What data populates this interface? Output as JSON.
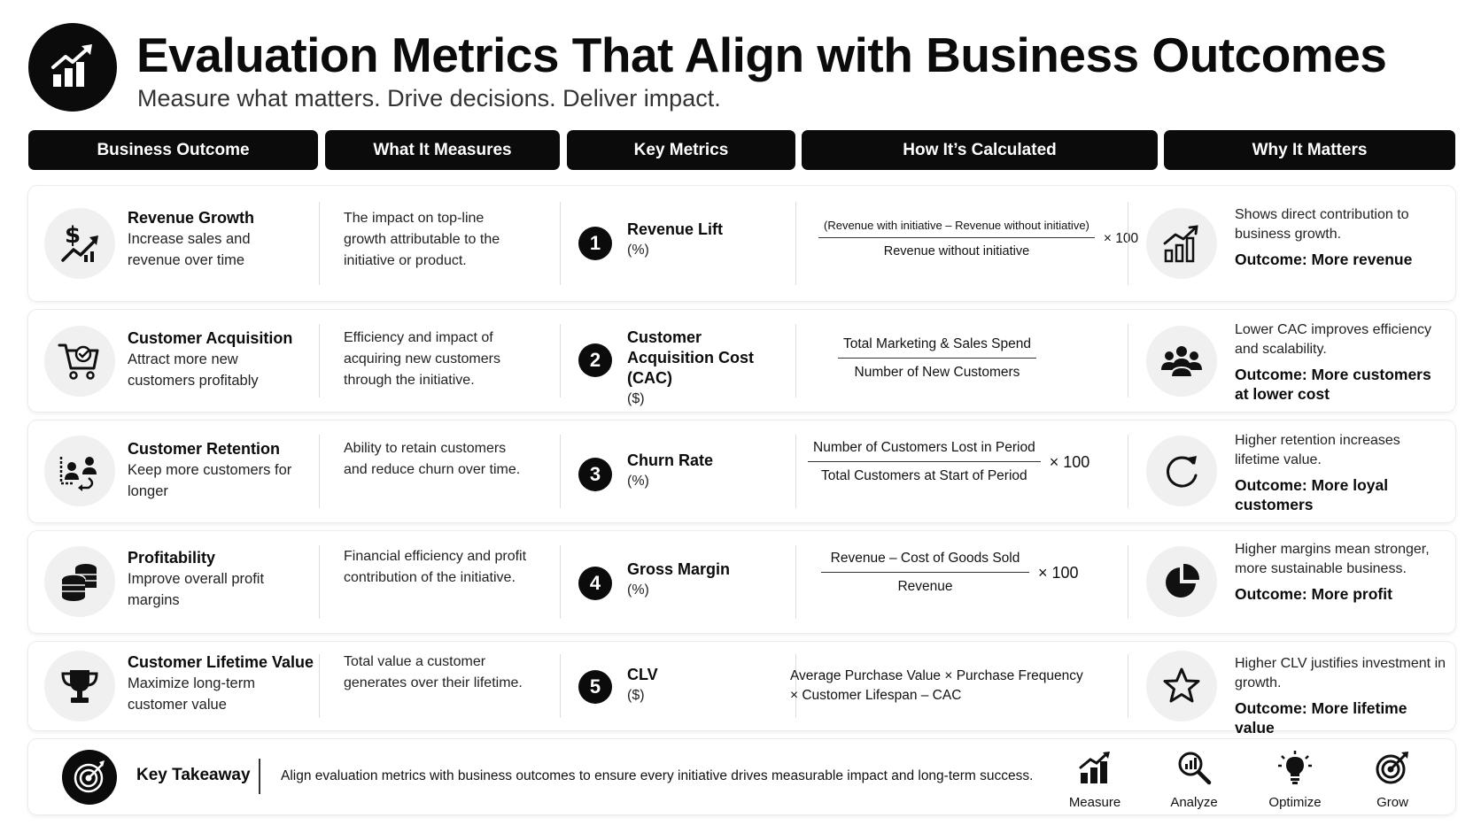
{
  "header": {
    "title": "Evaluation Metrics That Align with Business Outcomes",
    "subtitle": "Measure what matters. Drive decisions. Deliver impact.",
    "logo_icon": "growth-chart-icon"
  },
  "columns": [
    "Business Outcome",
    "What It Measures",
    "Key Metrics",
    "How It’s Calculated",
    "Why It Matters"
  ],
  "rows": [
    {
      "outcome_icon": "revenue-growth-icon",
      "outcome_title": "Revenue Growth",
      "outcome_desc": "Increase sales and revenue over time",
      "measures": "The impact on top-line growth attributable to the initiative or product.",
      "number": "1",
      "metric_name": "Revenue Lift",
      "metric_unit": "(%)",
      "formula_num": "(Revenue with initiative – Revenue without initiative)",
      "formula_den": "Revenue without initiative",
      "formula_mult": "× 100",
      "why_icon": "bar-chart-icon",
      "why_desc": "Shows direct contribution to business growth.",
      "why_outcome": "Outcome: More revenue"
    },
    {
      "outcome_icon": "shopping-cart-check-icon",
      "outcome_title": "Customer Acquisition",
      "outcome_desc": "Attract more new customers profitably",
      "measures": "Efficiency and impact of acquiring new customers through the initiative.",
      "number": "2",
      "metric_name": "Customer Acquisition Cost (CAC)",
      "metric_unit": "($)",
      "formula_num": "Total Marketing & Sales Spend",
      "formula_den": "Number of New Customers",
      "formula_mult": "",
      "why_icon": "users-group-icon",
      "why_desc": "Lower CAC improves efficiency and scalability.",
      "why_outcome": "Outcome: More customers at lower cost"
    },
    {
      "outcome_icon": "customer-retention-icon",
      "outcome_title": "Customer Retention",
      "outcome_desc": "Keep more customers for longer",
      "measures": "Ability to retain customers and reduce churn over time.",
      "number": "3",
      "metric_name": "Churn Rate",
      "metric_unit": "(%)",
      "formula_num": "Number of Customers Lost in Period",
      "formula_den": "Total Customers at Start of Period",
      "formula_mult": "× 100",
      "why_icon": "refresh-icon",
      "why_desc": "Higher retention increases lifetime value.",
      "why_outcome": "Outcome: More loyal customers"
    },
    {
      "outcome_icon": "coin-stack-icon",
      "outcome_title": "Profitability",
      "outcome_desc": "Improve overall profit margins",
      "measures": "Financial efficiency and profit contribution of the initiative.",
      "number": "4",
      "metric_name": "Gross Margin",
      "metric_unit": "(%)",
      "formula_num": "Revenue – Cost of Goods Sold",
      "formula_den": "Revenue",
      "formula_mult": "× 100",
      "why_icon": "pie-chart-icon",
      "why_desc": "Higher margins mean stronger, more sustainable business.",
      "why_outcome": "Outcome: More profit"
    },
    {
      "outcome_icon": "trophy-icon",
      "outcome_title": "Customer Lifetime Value",
      "outcome_desc": "Maximize long-term customer value",
      "measures": "Total value a customer generates over their lifetime.",
      "number": "5",
      "metric_name": "CLV",
      "metric_unit": "($)",
      "formula_inline": "Average Purchase Value × Purchase Frequency × Customer Lifespan – CAC",
      "why_icon": "star-icon",
      "why_desc": "Higher CLV justifies investment in growth.",
      "why_outcome": "Outcome: More lifetime value"
    }
  ],
  "takeaway": {
    "icon": "target-icon",
    "title": "Key Takeaway",
    "text": "Align evaluation metrics with business outcomes to ensure every initiative drives measurable impact and long-term success.",
    "steps": [
      {
        "icon": "measure-icon",
        "label": "Measure"
      },
      {
        "icon": "analyze-icon",
        "label": "Analyze"
      },
      {
        "icon": "optimize-icon",
        "label": "Optimize"
      },
      {
        "icon": "grow-icon",
        "label": "Grow"
      }
    ]
  }
}
